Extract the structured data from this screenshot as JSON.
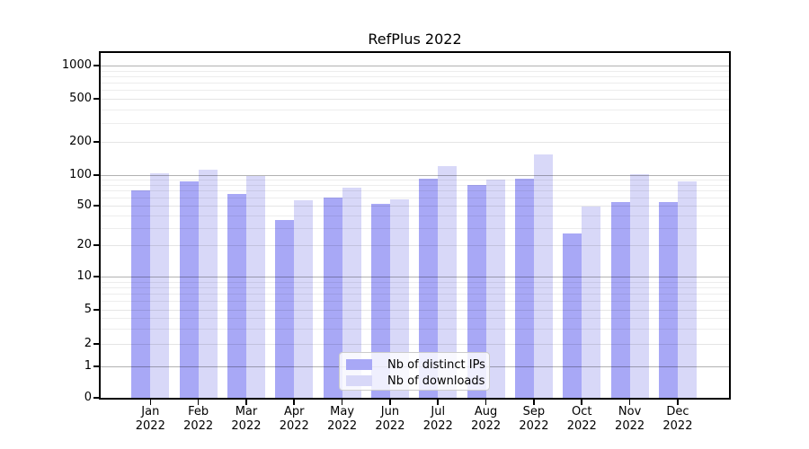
{
  "figure": {
    "title": "RefPlus 2022"
  },
  "chart_data": {
    "type": "bar",
    "title": "RefPlus 2022",
    "y_scale": "symlog",
    "grid": true,
    "x": [
      "Jan",
      "Feb",
      "Mar",
      "Apr",
      "May",
      "Jun",
      "Jul",
      "Aug",
      "Sep",
      "Oct",
      "Nov",
      "Dec"
    ],
    "x_year": "2022",
    "series": [
      {
        "name": "Nb of distinct IPs",
        "color": "#a8a8f6",
        "values": [
          71,
          87,
          65,
          36,
          60,
          52,
          93,
          80,
          92,
          26,
          54,
          54
        ]
      },
      {
        "name": "Nb of downloads",
        "color": "#d8d8f8",
        "values": [
          103,
          112,
          98,
          56,
          75,
          58,
          120,
          90,
          155,
          49,
          102,
          86
        ]
      }
    ],
    "y_axis": {
      "ticks": [
        0,
        1,
        2,
        5,
        10,
        20,
        50,
        100,
        200,
        500,
        1000
      ],
      "ylim": [
        0,
        1000
      ]
    },
    "legend": {
      "position": "lower center"
    }
  }
}
